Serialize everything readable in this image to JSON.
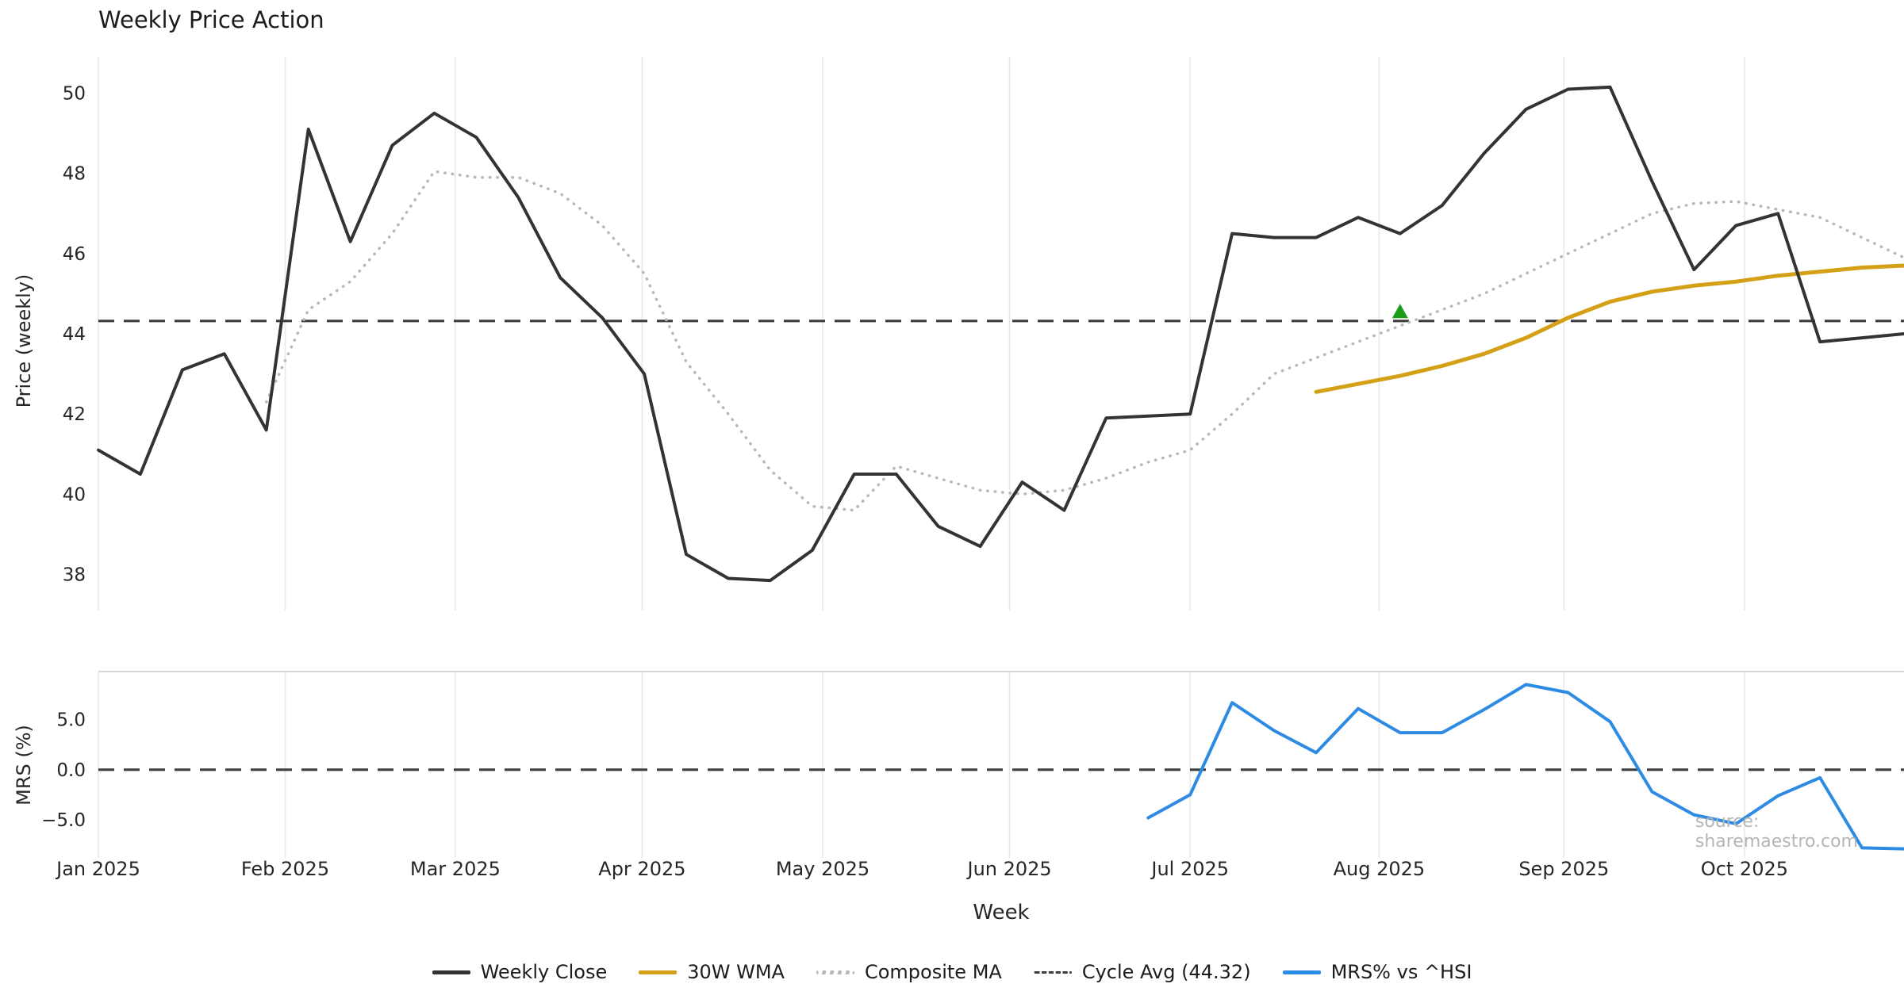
{
  "title": "Weekly Price Action",
  "xlabel": "Week",
  "watermark": "source: sharemaestro.com",
  "legend": {
    "items": [
      {
        "label": "Weekly Close",
        "color": "#333333",
        "style": "solid"
      },
      {
        "label": "30W WMA",
        "color": "#d4a017",
        "style": "solid"
      },
      {
        "label": "Composite MA",
        "color": "#b8b8b8",
        "style": "dotted"
      },
      {
        "label": "Cycle Avg (44.32)",
        "color": "#3d3d3d",
        "style": "dashed"
      },
      {
        "label": "MRS% vs ^HSI",
        "color": "#2e8be4",
        "style": "solid"
      }
    ]
  },
  "chart_data": {
    "type": "line",
    "title": "Weekly Price Action",
    "xlabel": "Week",
    "x_unit": "week_index",
    "x_max": 43,
    "grid": "vertical-only",
    "legend_position": "bottom-center",
    "xticks": [
      {
        "pos": 0,
        "label": "Jan 2025"
      },
      {
        "pos": 4.45,
        "label": "Feb 2025"
      },
      {
        "pos": 8.5,
        "label": "Mar 2025"
      },
      {
        "pos": 12.95,
        "label": "Apr 2025"
      },
      {
        "pos": 17.25,
        "label": "May 2025"
      },
      {
        "pos": 21.7,
        "label": "Jun 2025"
      },
      {
        "pos": 26.0,
        "label": "Jul 2025"
      },
      {
        "pos": 30.5,
        "label": "Aug 2025"
      },
      {
        "pos": 34.9,
        "label": "Sep 2025"
      },
      {
        "pos": 39.2,
        "label": "Oct 2025"
      }
    ],
    "panels": [
      {
        "id": "price",
        "ylabel": "Price (weekly)",
        "ylim": [
          37.1,
          50.9
        ],
        "yticks": [
          {
            "v": 50,
            "label": "50"
          },
          {
            "v": 48,
            "label": "48"
          },
          {
            "v": 46,
            "label": "46"
          },
          {
            "v": 44,
            "label": "44"
          },
          {
            "v": 42,
            "label": "42"
          },
          {
            "v": 40,
            "label": "40"
          },
          {
            "v": 38,
            "label": "38"
          }
        ],
        "hlines": [
          {
            "v": 44.32,
            "label": "Cycle Avg (44.32)",
            "color": "#3d3d3d",
            "style": "dashed"
          }
        ],
        "markers": [
          {
            "shape": "triangle-up",
            "week": 31,
            "v": 44.55,
            "color": "#1a9e1a",
            "name": "green-triangle-signal-marker"
          }
        ],
        "series": [
          {
            "id": "composite-ma",
            "name": "Composite MA",
            "color": "#b8b8b8",
            "style": "dotted",
            "start_week": 4,
            "values": [
              42.3,
              44.6,
              45.3,
              46.5,
              48.05,
              47.9,
              47.9,
              47.5,
              46.7,
              45.5,
              43.3,
              42.0,
              40.6,
              39.7,
              39.6,
              40.7,
              40.4,
              40.1,
              40.0,
              40.1,
              40.4,
              40.8,
              41.1,
              42.0,
              43.0,
              43.4,
              43.8,
              44.2,
              44.6,
              45.0,
              45.5,
              46.0,
              46.5,
              47.0,
              47.25,
              47.3,
              47.1,
              46.9,
              46.4,
              45.9
            ]
          },
          {
            "id": "wma-30w",
            "name": "30W WMA",
            "color": "#d4a017",
            "style": "solid",
            "start_week": 29,
            "values": [
              42.55,
              42.75,
              42.95,
              43.2,
              43.5,
              43.9,
              44.4,
              44.8,
              45.05,
              45.2,
              45.3,
              45.45,
              45.55,
              45.65,
              45.7
            ]
          },
          {
            "id": "weekly-close",
            "name": "Weekly Close",
            "color": "#333333",
            "style": "solid",
            "start_week": 0,
            "values": [
              41.1,
              40.5,
              43.1,
              43.5,
              41.6,
              49.1,
              46.3,
              48.7,
              49.5,
              48.9,
              47.4,
              45.4,
              44.4,
              43.0,
              38.5,
              37.9,
              37.85,
              38.6,
              40.5,
              40.5,
              39.2,
              38.7,
              40.3,
              39.6,
              41.9,
              41.95,
              42.0,
              46.5,
              46.4,
              46.4,
              46.9,
              46.5,
              47.2,
              48.5,
              49.6,
              50.1,
              50.15,
              47.8,
              45.6,
              46.7,
              47.0,
              43.8,
              43.9,
              44.0
            ]
          }
        ]
      },
      {
        "id": "mrs",
        "ylabel": "MRS (%)",
        "ylim": [
          -8.8,
          9.8
        ],
        "yticks": [
          {
            "v": 5,
            "label": "5.0"
          },
          {
            "v": 0,
            "label": "0.0"
          },
          {
            "v": -5,
            "label": "−5.0"
          }
        ],
        "hlines": [
          {
            "v": 0,
            "label": "zero-line",
            "color": "#3d3d3d",
            "style": "dashed"
          }
        ],
        "markers": [],
        "series": [
          {
            "id": "mrs-hsi",
            "name": "MRS% vs ^HSI",
            "color": "#2e8be4",
            "style": "solid",
            "start_week": 25,
            "values": [
              -4.8,
              -2.5,
              6.7,
              3.9,
              1.7,
              6.1,
              3.7,
              3.7,
              6.0,
              8.5,
              7.7,
              4.8,
              -2.2,
              -4.5,
              -5.4,
              -2.6,
              -0.8,
              -7.8,
              -7.9
            ]
          }
        ]
      }
    ]
  }
}
